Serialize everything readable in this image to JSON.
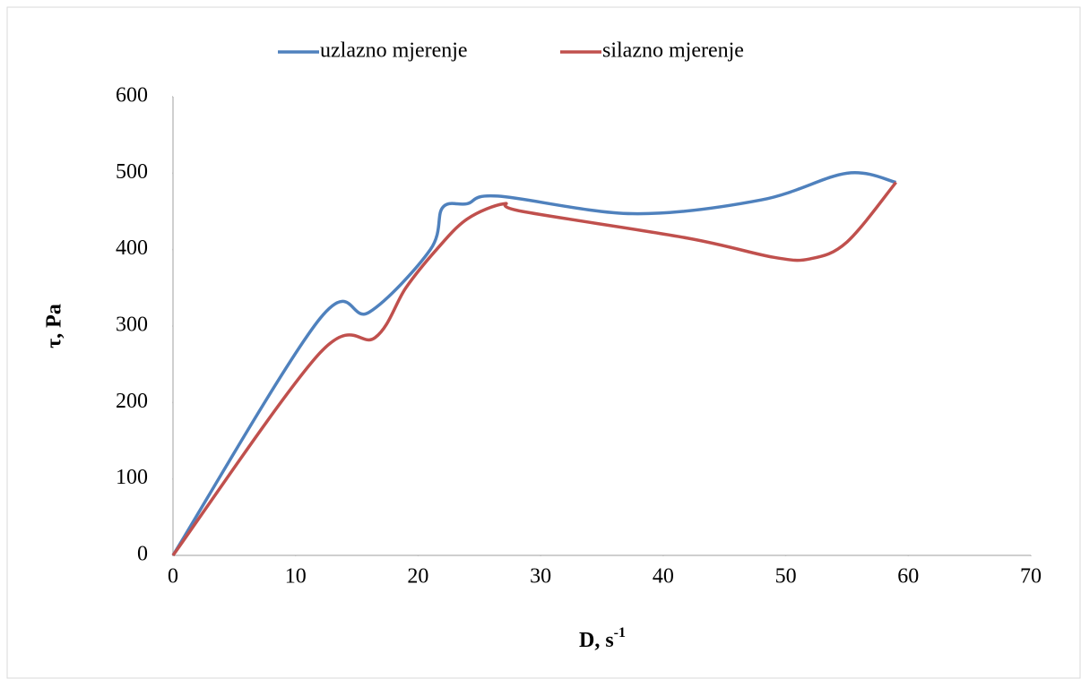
{
  "chart_data": {
    "type": "line",
    "x_label": {
      "text": "D, s",
      "superscript": "-1"
    },
    "y_label": "τ, Pa",
    "series": [
      {
        "name": "uzlazno mjerenje",
        "color": "#4f81bd",
        "x": [
          0,
          12,
          16,
          21,
          22,
          24,
          26.5,
          37.5,
          48,
          55,
          59
        ],
        "values": [
          0,
          310,
          318,
          400,
          455,
          460,
          470,
          447,
          465,
          500,
          488
        ]
      },
      {
        "name": "silazno mjerenje",
        "color": "#c0504d",
        "x": [
          0,
          12,
          16.5,
          19,
          21.5,
          24,
          27,
          28.5,
          42,
          49,
          52,
          55,
          59
        ],
        "values": [
          0,
          265,
          285,
          350,
          400,
          440,
          460,
          450,
          415,
          390,
          388,
          410,
          488
        ]
      }
    ],
    "xlim": [
      0,
      70
    ],
    "xticks": [
      0,
      10,
      20,
      30,
      40,
      50,
      60,
      70
    ],
    "ylim": [
      0,
      600
    ],
    "yticks": [
      0,
      100,
      200,
      300,
      400,
      500,
      600
    ],
    "grid": false,
    "legend": "top"
  }
}
